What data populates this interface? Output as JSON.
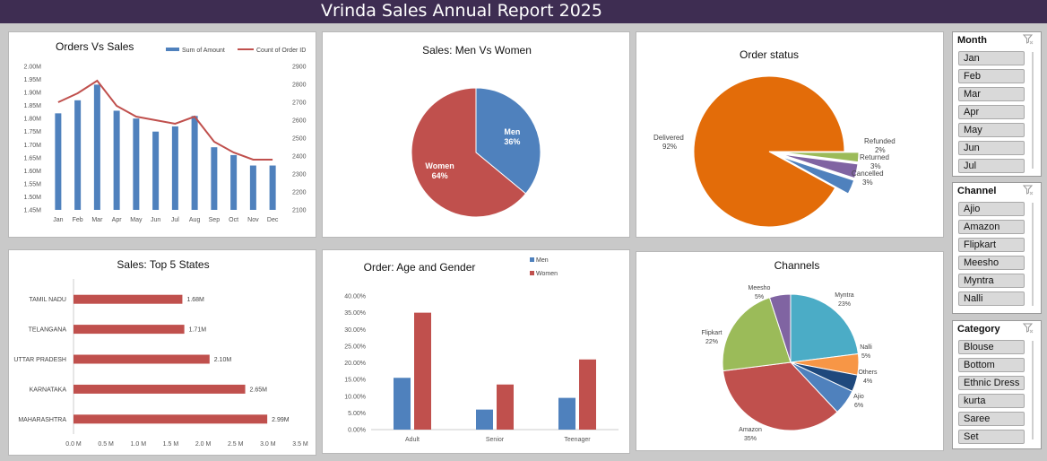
{
  "report_title": "Vrinda Sales Annual Report 2025",
  "colors": {
    "blue": "#4f81bd",
    "red": "#c0504d",
    "orange": "#e36c09",
    "green": "#9bbb59",
    "purple": "#8064a2",
    "teal": "#4bacc6",
    "gold": "#f79646",
    "navy": "#1f497d"
  },
  "orders_vs_sales": {
    "title": "Orders Vs Sales",
    "legend": {
      "bar": "Sum of Amount",
      "line": "Count of Order ID"
    },
    "chart_data": {
      "type": "bar",
      "categories": [
        "Jan",
        "Feb",
        "Mar",
        "Apr",
        "May",
        "Jun",
        "Jul",
        "Aug",
        "Sep",
        "Oct",
        "Nov",
        "Dec"
      ],
      "series": [
        {
          "name": "Sum of Amount",
          "values": [
            1.82,
            1.87,
            1.93,
            1.83,
            1.8,
            1.75,
            1.77,
            1.81,
            1.69,
            1.66,
            1.62,
            1.62
          ]
        },
        {
          "name": "Count of Order ID",
          "values": [
            2700,
            2750,
            2820,
            2680,
            2620,
            2600,
            2580,
            2620,
            2480,
            2420,
            2380,
            2380
          ]
        }
      ],
      "ylim": [
        1.45,
        2.0
      ],
      "y2lim": [
        2100,
        2900
      ],
      "ytick_labels": [
        "2.00M",
        "1.95M",
        "1.90M",
        "1.85M",
        "1.80M",
        "1.75M",
        "1.70M",
        "1.65M",
        "1.60M",
        "1.55M",
        "1.50M",
        "1.45M"
      ],
      "y2tick_labels": [
        "2900",
        "2800",
        "2700",
        "2600",
        "2500",
        "2400",
        "2300",
        "2200",
        "2100"
      ]
    }
  },
  "men_vs_women": {
    "title": "Sales: Men Vs Women",
    "chart_data": {
      "type": "pie",
      "labels": [
        "Men",
        "Women"
      ],
      "values": [
        36,
        64
      ],
      "percent_labels": [
        "36%",
        "64%"
      ]
    }
  },
  "order_status": {
    "title": "Order status",
    "chart_data": {
      "type": "pie",
      "labels": [
        "Delivered",
        "Refunded",
        "Returned",
        "Cancelled"
      ],
      "values": [
        92,
        2,
        3,
        3
      ],
      "percent_labels": [
        "92%",
        "2%",
        "3%",
        "3%"
      ]
    }
  },
  "top_states": {
    "title": "Sales: Top 5 States",
    "chart_data": {
      "type": "bar",
      "categories": [
        "TAMIL NADU",
        "TELANGANA",
        "UTTAR PRADESH",
        "KARNATAKA",
        "MAHARASHTRA"
      ],
      "values": [
        1.68,
        1.71,
        2.1,
        2.65,
        2.99
      ],
      "value_labels": [
        "1.68M",
        "1.71M",
        "2.10M",
        "2.65M",
        "2.99M"
      ],
      "xlim": [
        0,
        3.5
      ],
      "xtick_labels": [
        "0.0 M",
        "0.5 M",
        "1.0 M",
        "1.5 M",
        "2.0 M",
        "2.5 M",
        "3.0 M",
        "3.5 M"
      ]
    }
  },
  "age_gender": {
    "title": "Order: Age and Gender",
    "chart_data": {
      "type": "bar",
      "categories": [
        "Adult",
        "Senior",
        "Teenager"
      ],
      "series": [
        {
          "name": "Men",
          "values": [
            15.5,
            6.0,
            9.5
          ]
        },
        {
          "name": "Women",
          "values": [
            35.0,
            13.5,
            21.0
          ]
        }
      ],
      "ylim": [
        0,
        40
      ],
      "ytick_labels": [
        "40.00%",
        "35.00%",
        "30.00%",
        "25.00%",
        "20.00%",
        "15.00%",
        "10.00%",
        "5.00%",
        "0.00%"
      ]
    }
  },
  "channels": {
    "title": "Channels",
    "chart_data": {
      "type": "pie",
      "labels": [
        "Myntra",
        "Nalli",
        "Others",
        "Ajio",
        "Amazon",
        "Flipkart",
        "Meesho"
      ],
      "values": [
        23,
        5,
        4,
        6,
        35,
        22,
        5
      ],
      "percent_labels": [
        "23%",
        "5%",
        "4%",
        "6%",
        "35%",
        "22%",
        "5%"
      ]
    }
  },
  "slicers": [
    {
      "header": "Month",
      "items": [
        "Jan",
        "Feb",
        "Mar",
        "Apr",
        "May",
        "Jun",
        "Jul"
      ]
    },
    {
      "header": "Channel",
      "items": [
        "Ajio",
        "Amazon",
        "Flipkart",
        "Meesho",
        "Myntra",
        "Nalli"
      ]
    },
    {
      "header": "Category",
      "items": [
        "Blouse",
        "Bottom",
        "Ethnic Dress",
        "kurta",
        "Saree",
        "Set"
      ]
    }
  ]
}
